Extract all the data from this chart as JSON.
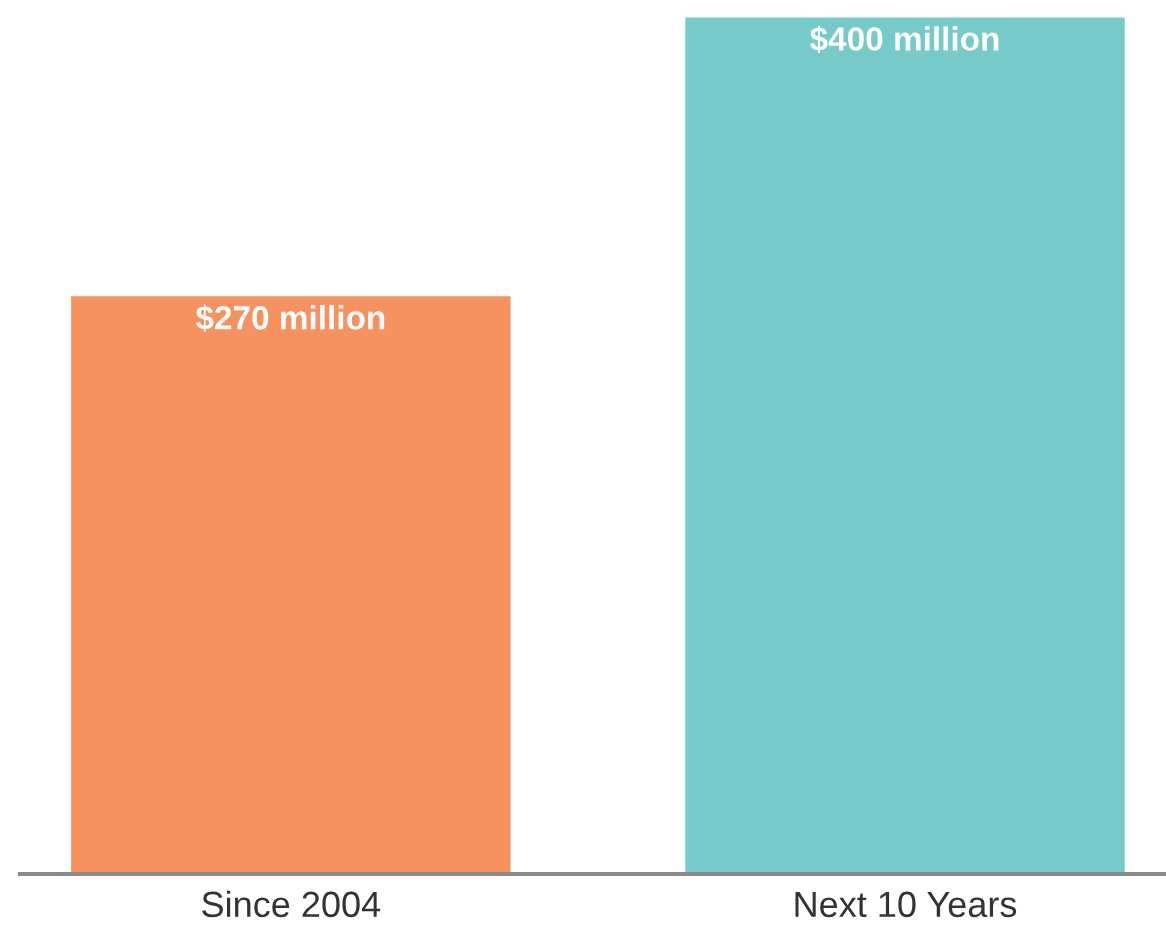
{
  "chart_data": {
    "type": "bar",
    "categories": [
      "Since 2004",
      "Next 10 Years"
    ],
    "values": [
      270,
      400
    ],
    "colors": [
      "#f6925f",
      "#76cbca"
    ],
    "value_labels": [
      "$270 million",
      "$400 million"
    ],
    "grid": false,
    "legend": false
  }
}
